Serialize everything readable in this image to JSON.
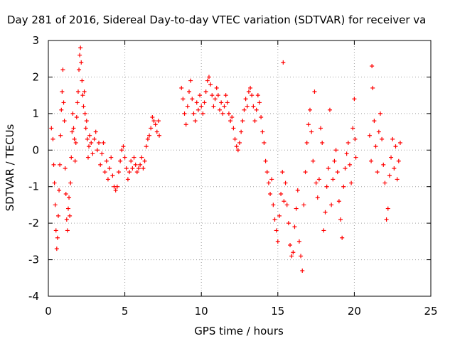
{
  "chart_data": {
    "type": "scatter",
    "title": "Day 281 of 2016, Sidereal Day-to-day VTEC variation (SDTVAR) for receiver va",
    "xlabel": "GPS time / hours",
    "ylabel": "SDTVAR / TECUs",
    "xlim": [
      0,
      25
    ],
    "ylim": [
      -4,
      3
    ],
    "xticks": [
      "0",
      "5",
      "10",
      "15",
      "20",
      "25"
    ],
    "yticks": [
      "-4",
      "-3",
      "-2",
      "-1",
      "0",
      "1",
      "2",
      "3"
    ],
    "grid": true,
    "marker": "plus",
    "color": "#ff0000",
    "series": [
      {
        "name": "",
        "points": [
          [
            0.2,
            0.6
          ],
          [
            0.3,
            0.3
          ],
          [
            0.35,
            -0.4
          ],
          [
            0.4,
            -0.9
          ],
          [
            0.45,
            -1.5
          ],
          [
            0.5,
            -2.2
          ],
          [
            0.55,
            -2.7
          ],
          [
            0.6,
            -2.4
          ],
          [
            0.65,
            -1.8
          ],
          [
            0.7,
            -1.1
          ],
          [
            0.75,
            -0.4
          ],
          [
            0.8,
            0.4
          ],
          [
            0.85,
            1.1
          ],
          [
            0.9,
            1.6
          ],
          [
            0.95,
            2.2
          ],
          [
            1.0,
            1.3
          ],
          [
            1.05,
            0.8
          ],
          [
            1.1,
            -0.5
          ],
          [
            1.15,
            -1.2
          ],
          [
            1.2,
            -1.9
          ],
          [
            1.25,
            -2.2
          ],
          [
            1.3,
            -1.6
          ],
          [
            1.35,
            -1.3
          ],
          [
            1.4,
            -1.8
          ],
          [
            1.45,
            -0.9
          ],
          [
            1.5,
            -0.2
          ],
          [
            1.55,
            0.5
          ],
          [
            1.6,
            1.0
          ],
          [
            1.65,
            0.6
          ],
          [
            1.7,
            0.3
          ],
          [
            1.75,
            -0.3
          ],
          [
            1.8,
            0.2
          ],
          [
            1.85,
            0.9
          ],
          [
            1.9,
            1.3
          ],
          [
            1.95,
            1.6
          ],
          [
            2.0,
            2.2
          ],
          [
            2.05,
            2.6
          ],
          [
            2.1,
            2.8
          ],
          [
            2.15,
            2.4
          ],
          [
            2.2,
            1.9
          ],
          [
            2.25,
            1.5
          ],
          [
            2.3,
            1.2
          ],
          [
            2.35,
            1.6
          ],
          [
            2.4,
            1.0
          ],
          [
            2.45,
            0.6
          ],
          [
            2.5,
            0.8
          ],
          [
            2.55,
            0.3
          ],
          [
            2.6,
            -0.2
          ],
          [
            2.65,
            0.1
          ],
          [
            2.7,
            0.4
          ],
          [
            2.8,
            0.2
          ],
          [
            2.9,
            -0.1
          ],
          [
            3.0,
            0.3
          ],
          [
            3.1,
            0.5
          ],
          [
            3.2,
            0.0
          ],
          [
            3.3,
            0.2
          ],
          [
            3.4,
            -0.4
          ],
          [
            3.5,
            -0.1
          ],
          [
            3.6,
            0.2
          ],
          [
            3.7,
            -0.6
          ],
          [
            3.8,
            -0.3
          ],
          [
            3.9,
            -0.8
          ],
          [
            4.0,
            -0.5
          ],
          [
            4.1,
            -0.2
          ],
          [
            4.2,
            -0.7
          ],
          [
            4.3,
            -1.0
          ],
          [
            4.4,
            -1.1
          ],
          [
            4.5,
            -1.0
          ],
          [
            4.6,
            -0.6
          ],
          [
            4.7,
            -0.3
          ],
          [
            4.8,
            0.0
          ],
          [
            4.9,
            0.1
          ],
          [
            5.0,
            -0.2
          ],
          [
            5.1,
            -0.5
          ],
          [
            5.2,
            -0.8
          ],
          [
            5.3,
            -0.6
          ],
          [
            5.4,
            -0.3
          ],
          [
            5.5,
            -0.5
          ],
          [
            5.6,
            -0.2
          ],
          [
            5.7,
            -0.4
          ],
          [
            5.8,
            -0.6
          ],
          [
            5.9,
            -0.5
          ],
          [
            6.0,
            -0.4
          ],
          [
            6.1,
            -0.2
          ],
          [
            6.2,
            -0.5
          ],
          [
            6.3,
            -0.3
          ],
          [
            6.4,
            0.1
          ],
          [
            6.5,
            0.3
          ],
          [
            6.6,
            0.4
          ],
          [
            6.7,
            0.6
          ],
          [
            6.8,
            0.9
          ],
          [
            6.9,
            0.8
          ],
          [
            7.0,
            0.7
          ],
          [
            7.1,
            0.5
          ],
          [
            7.2,
            0.8
          ],
          [
            7.25,
            0.4
          ],
          [
            8.7,
            1.7
          ],
          [
            8.8,
            1.4
          ],
          [
            8.9,
            1.0
          ],
          [
            9.0,
            0.7
          ],
          [
            9.1,
            1.2
          ],
          [
            9.2,
            1.6
          ],
          [
            9.3,
            1.9
          ],
          [
            9.4,
            1.4
          ],
          [
            9.5,
            1.0
          ],
          [
            9.6,
            0.8
          ],
          [
            9.7,
            1.3
          ],
          [
            9.8,
            1.1
          ],
          [
            9.9,
            1.5
          ],
          [
            10.0,
            1.2
          ],
          [
            10.1,
            1.0
          ],
          [
            10.2,
            1.3
          ],
          [
            10.3,
            1.6
          ],
          [
            10.4,
            1.9
          ],
          [
            10.5,
            2.0
          ],
          [
            10.6,
            1.8
          ],
          [
            10.7,
            1.5
          ],
          [
            10.8,
            1.2
          ],
          [
            10.9,
            1.4
          ],
          [
            11.0,
            1.7
          ],
          [
            11.1,
            1.5
          ],
          [
            11.2,
            1.1
          ],
          [
            11.3,
            1.3
          ],
          [
            11.4,
            1.0
          ],
          [
            11.5,
            1.2
          ],
          [
            11.6,
            1.5
          ],
          [
            11.7,
            1.3
          ],
          [
            11.8,
            1.0
          ],
          [
            11.9,
            0.8
          ],
          [
            12.0,
            0.9
          ],
          [
            12.1,
            0.6
          ],
          [
            12.2,
            0.3
          ],
          [
            12.3,
            0.1
          ],
          [
            12.4,
            0.0
          ],
          [
            12.5,
            0.2
          ],
          [
            12.6,
            0.5
          ],
          [
            12.7,
            0.8
          ],
          [
            12.8,
            1.1
          ],
          [
            12.9,
            1.4
          ],
          [
            13.0,
            1.2
          ],
          [
            13.1,
            1.6
          ],
          [
            13.2,
            1.7
          ],
          [
            13.3,
            1.5
          ],
          [
            13.4,
            1.2
          ],
          [
            13.5,
            0.8
          ],
          [
            13.6,
            1.1
          ],
          [
            13.7,
            1.5
          ],
          [
            13.8,
            1.3
          ],
          [
            13.9,
            0.9
          ],
          [
            14.0,
            0.5
          ],
          [
            14.1,
            0.2
          ],
          [
            14.2,
            -0.3
          ],
          [
            14.3,
            -0.6
          ],
          [
            14.4,
            -0.9
          ],
          [
            14.5,
            -1.2
          ],
          [
            14.6,
            -0.8
          ],
          [
            14.7,
            -1.5
          ],
          [
            14.8,
            -1.9
          ],
          [
            14.9,
            -2.2
          ],
          [
            15.0,
            -2.5
          ],
          [
            15.1,
            -1.8
          ],
          [
            15.2,
            -1.2
          ],
          [
            15.3,
            -0.6
          ],
          [
            15.35,
            2.4
          ],
          [
            15.4,
            -1.4
          ],
          [
            15.5,
            -0.9
          ],
          [
            15.6,
            -1.5
          ],
          [
            15.7,
            -2.0
          ],
          [
            15.8,
            -2.6
          ],
          [
            15.9,
            -2.9
          ],
          [
            16.0,
            -2.8
          ],
          [
            16.1,
            -2.1
          ],
          [
            16.2,
            -1.6
          ],
          [
            16.3,
            -1.1
          ],
          [
            16.4,
            -2.5
          ],
          [
            16.5,
            -2.9
          ],
          [
            16.6,
            -3.3
          ],
          [
            16.7,
            -1.5
          ],
          [
            16.8,
            -0.6
          ],
          [
            16.9,
            0.2
          ],
          [
            17.0,
            0.7
          ],
          [
            17.1,
            1.1
          ],
          [
            17.2,
            0.5
          ],
          [
            17.3,
            -0.3
          ],
          [
            17.4,
            1.6
          ],
          [
            17.5,
            -0.9
          ],
          [
            17.6,
            -1.3
          ],
          [
            17.7,
            -0.8
          ],
          [
            17.8,
            0.6
          ],
          [
            17.9,
            0.2
          ],
          [
            18.0,
            -2.2
          ],
          [
            18.1,
            -1.7
          ],
          [
            18.2,
            -1.0
          ],
          [
            18.3,
            -0.5
          ],
          [
            18.4,
            1.1
          ],
          [
            18.5,
            -1.5
          ],
          [
            18.6,
            -0.8
          ],
          [
            18.7,
            -0.3
          ],
          [
            18.8,
            0.0
          ],
          [
            18.9,
            -0.6
          ],
          [
            19.0,
            -1.4
          ],
          [
            19.1,
            -1.9
          ],
          [
            19.2,
            -2.4
          ],
          [
            19.3,
            -1.0
          ],
          [
            19.4,
            -0.5
          ],
          [
            19.5,
            -0.1
          ],
          [
            19.6,
            0.2
          ],
          [
            19.7,
            -0.4
          ],
          [
            19.8,
            -0.9
          ],
          [
            19.9,
            0.6
          ],
          [
            20.0,
            1.4
          ],
          [
            20.05,
            0.3
          ],
          [
            20.1,
            -0.2
          ],
          [
            21.0,
            0.4
          ],
          [
            21.1,
            -0.3
          ],
          [
            21.15,
            2.3
          ],
          [
            21.2,
            1.7
          ],
          [
            21.3,
            0.8
          ],
          [
            21.4,
            0.1
          ],
          [
            21.5,
            -0.6
          ],
          [
            21.6,
            0.5
          ],
          [
            21.7,
            1.0
          ],
          [
            21.8,
            0.3
          ],
          [
            21.9,
            -0.4
          ],
          [
            22.0,
            -0.9
          ],
          [
            22.1,
            -1.9
          ],
          [
            22.2,
            -1.6
          ],
          [
            22.3,
            -0.7
          ],
          [
            22.4,
            -0.2
          ],
          [
            22.5,
            0.3
          ],
          [
            22.6,
            -0.5
          ],
          [
            22.7,
            0.1
          ],
          [
            22.8,
            -0.8
          ],
          [
            22.9,
            -0.3
          ],
          [
            23.0,
            0.2
          ]
        ]
      }
    ]
  }
}
